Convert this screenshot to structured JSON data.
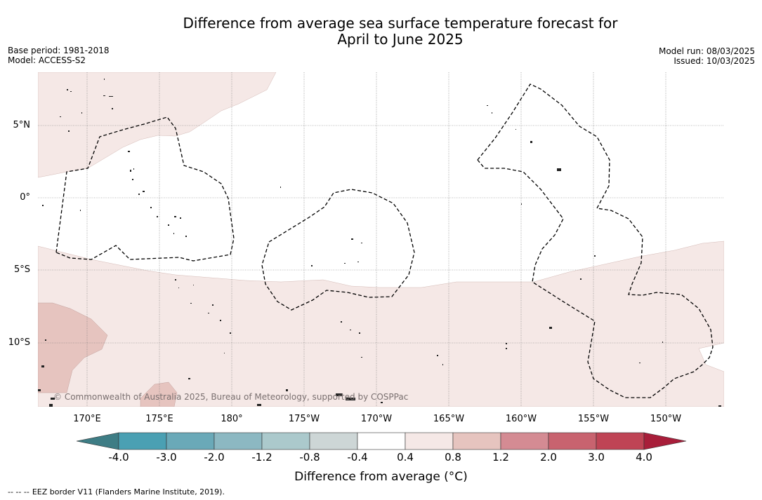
{
  "title_line1": "Difference from average sea surface temperature forecast for",
  "title_line2": "April to June 2025",
  "meta_left": [
    "Base period: 1981-2018",
    "Model: ACCESS-S2"
  ],
  "meta_right": [
    "Model run: 08/03/2025",
    "Issued: 10/03/2025"
  ],
  "latitude_labels": [
    "5°N",
    "0°",
    "5°S",
    "10°S"
  ],
  "longitude_labels": [
    "170°E",
    "175°E",
    "180°",
    "175°W",
    "170°W",
    "165°W",
    "160°W",
    "155°W",
    "150°W"
  ],
  "copyright": "© Commonwealth of Australia 2025, Bureau of Meteorology, supported by COSPPac",
  "colorbar": {
    "ticks": [
      "-4.0",
      "-3.0",
      "-2.0",
      "-1.2",
      "-0.8",
      "-0.4",
      "0.4",
      "0.8",
      "1.2",
      "2.0",
      "3.0",
      "4.0"
    ],
    "colors": [
      "#3e7d85",
      "#4aa0b3",
      "#6aa9b8",
      "#8cb8c2",
      "#abc9cc",
      "#cdd6d6",
      "#ffffff",
      "#f5e8e6",
      "#e6c4bf",
      "#d48b93",
      "#c8636f",
      "#bf4455",
      "#a81e3a"
    ],
    "label": "Difference from average (°C)"
  },
  "legend_note": {
    "dash_symbol": "--  --  --",
    "text": "EEZ border V11 (Flanders Marine Institute, 2019)."
  }
}
